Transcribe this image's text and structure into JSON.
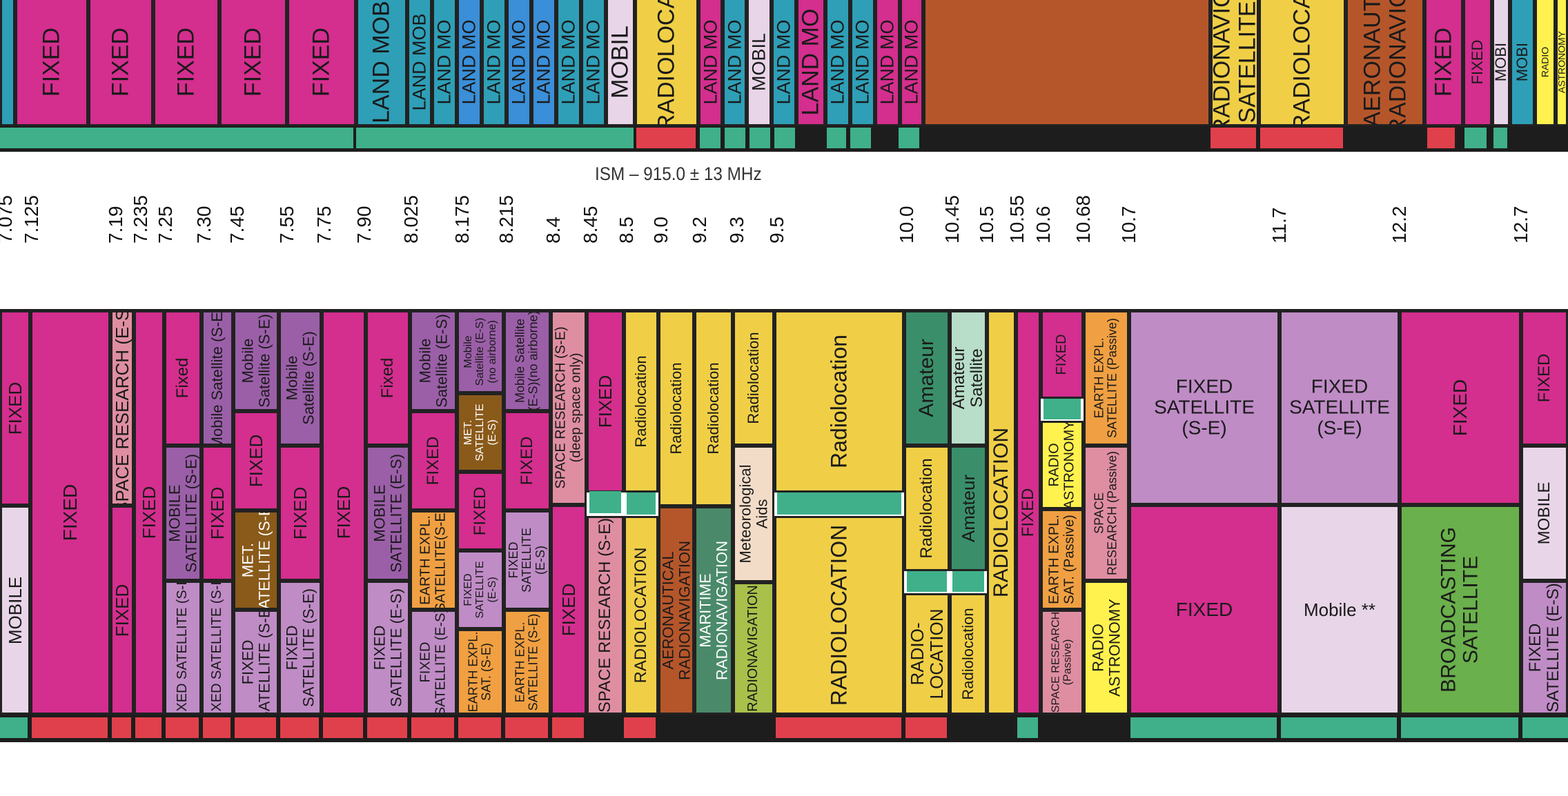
{
  "ism_label": "ISM – 915.0 ± 13 MHz",
  "colors": {
    "fixed": "#d42e8e",
    "mobile": "#e8d6e8",
    "land_mobile": "#2e9fb7",
    "land_mobile_blue": "#3a8fd8",
    "radiolocation": "#f0cf47",
    "radionav": "#b5562a",
    "space_research": "#df8ea2",
    "mobile_sat": "#9b5fa8",
    "fixed_sat": "#bf8cc6",
    "met_sat": "#8a5a1a",
    "earth_expl": "#f0a042",
    "amateur": "#3a8f6a",
    "amateur_sat": "#b8ddc8",
    "radio_astronomy": "#fff24e",
    "broadcasting_sat": "#6ab04c",
    "maritime_radionav": "#4a8a6a",
    "radionavigation": "#a9c04a",
    "met_aids": "#f2dcc8",
    "strip_green": "#3fb08a",
    "strip_red": "#e0404c",
    "strip_black": "#1d1d1d"
  },
  "top_band": [
    {
      "label": "FIXED",
      "color": "fixed"
    },
    {
      "label": "FIXED",
      "color": "fixed"
    },
    {
      "label": "FIXED",
      "color": "fixed"
    },
    {
      "label": "FIXED",
      "color": "fixed"
    },
    {
      "label": "FIXED",
      "color": "fixed"
    },
    {
      "label": "LAND MOB",
      "color": "land_mobile"
    },
    {
      "label": "LAND MOB",
      "color": "land_mobile"
    },
    {
      "label": "LAND MO",
      "color": "land_mobile"
    },
    {
      "label": "LAND MO",
      "color": "land_mobile"
    },
    {
      "label": "LAND MO",
      "color": "land_mobile"
    },
    {
      "label": "MOBIL",
      "color": "mobile"
    },
    {
      "label": "RADIOLOCA",
      "color": "radiolocation"
    },
    {
      "label": "LAND MO",
      "color": "land_mobile"
    },
    {
      "label": "MOBIL",
      "color": "mobile"
    },
    {
      "label": "LAND MO",
      "color": "land_mobile"
    },
    {
      "label": "LAND MO",
      "color": "land_mobile"
    },
    {
      "label": "LAND MO",
      "color": "land_mobile"
    },
    {
      "label": "RADIONAVIG\nSATELLITE",
      "color": "radiolocation"
    },
    {
      "label": "RADIOLOCA",
      "color": "radiolocation"
    },
    {
      "label": "AERONAUT\nRADIONAVIG",
      "color": "radionav"
    },
    {
      "label": "FIXED",
      "color": "fixed"
    },
    {
      "label": "FIXED",
      "color": "fixed"
    },
    {
      "label": "MOBI",
      "color": "mobile"
    },
    {
      "label": "RADIO",
      "color": "radio_astronomy"
    },
    {
      "label": "ASTRONOMY",
      "color": "radio_astronomy"
    }
  ],
  "ticks": [
    "7.075",
    "7.125",
    "7.19",
    "7.235",
    "7.25",
    "7.30",
    "7.45",
    "7.55",
    "7.75",
    "7.90",
    "8.025",
    "8.175",
    "8.215",
    "8.4",
    "8.45",
    "8.5",
    "9.0",
    "9.2",
    "9.3",
    "9.5",
    "10.0",
    "10.45",
    "10.5",
    "10.55",
    "10.6",
    "10.68",
    "10.7",
    "11.7",
    "12.2",
    "12.7"
  ],
  "cells": [
    {
      "label": "FIXED",
      "color": "fixed"
    },
    {
      "label": "MOBILE",
      "color": "mobile"
    },
    {
      "label": "FIXED",
      "color": "fixed"
    },
    {
      "label": "SPACE RESEARCH (E-S)",
      "color": "space_research"
    },
    {
      "label": "FIXED",
      "color": "fixed"
    },
    {
      "label": "FIXED",
      "color": "fixed"
    },
    {
      "label": "Fixed",
      "color": "fixed"
    },
    {
      "label": "MOBILE\nSATELLITE (S-E)",
      "color": "mobile_sat"
    },
    {
      "label": "FIXED SATELLITE (S-E)",
      "color": "fixed_sat"
    },
    {
      "label": "Mobile Satellite (S-E)",
      "color": "mobile_sat"
    },
    {
      "label": "FIXED",
      "color": "fixed"
    },
    {
      "label": "FIXED SATELLITE (S-E)",
      "color": "fixed_sat"
    },
    {
      "label": "Mobile\nSatellite (S-E)",
      "color": "mobile_sat"
    },
    {
      "label": "FIXED",
      "color": "fixed"
    },
    {
      "label": "MET.\nSATELLITE (S-E)",
      "color": "met_sat"
    },
    {
      "label": "FIXED\nSATELLITE (S-E)",
      "color": "fixed_sat"
    },
    {
      "label": "Mobile\nSatellite (S-E)",
      "color": "mobile_sat"
    },
    {
      "label": "FIXED",
      "color": "fixed"
    },
    {
      "label": "FIXED\nSATELLITE (S-E)",
      "color": "fixed_sat"
    },
    {
      "label": "FIXED",
      "color": "fixed"
    },
    {
      "label": "Fixed",
      "color": "fixed"
    },
    {
      "label": "MOBILE\nSATELLITE (E-S)",
      "color": "mobile_sat"
    },
    {
      "label": "FIXED\nSATELLITE (E-S)",
      "color": "fixed_sat"
    },
    {
      "label": "Mobile\nSatellite (E-S)",
      "color": "mobile_sat"
    },
    {
      "label": "FIXED",
      "color": "fixed"
    },
    {
      "label": "EARTH EXPL.\nSATELLITE(S-E)",
      "color": "earth_expl"
    },
    {
      "label": "FIXED\nSATELLITE (E-S)",
      "color": "fixed_sat"
    },
    {
      "label": "Mobile\nSatellite (E-S)\n(no airborne)",
      "color": "mobile_sat"
    },
    {
      "label": "MET.\nSATELLITE\n(E-S)",
      "color": "met_sat"
    },
    {
      "label": "FIXED",
      "color": "fixed"
    },
    {
      "label": "FIXED\nSATELLITE\n(E-S)",
      "color": "fixed_sat"
    },
    {
      "label": "EARTH EXPL.\nSAT. (S-E)",
      "color": "earth_expl"
    },
    {
      "label": "Mobile Satellite\n(E-S)(no airborne)",
      "color": "mobile_sat"
    },
    {
      "label": "FIXED",
      "color": "fixed"
    },
    {
      "label": "FIXED\nSATELLITE\n(E-S)",
      "color": "fixed_sat"
    },
    {
      "label": "EARTH EXPL.\nSATELLITE (S-E)",
      "color": "earth_expl"
    },
    {
      "label": "SPACE RESEARCH (S-E)\n(deep space only)",
      "color": "space_research"
    },
    {
      "label": "FIXED",
      "color": "fixed"
    },
    {
      "label": "FIXED",
      "color": "fixed"
    },
    {
      "label": "SPACE RESEARCH (S-E)",
      "color": "space_research"
    },
    {
      "label": "Radiolocation",
      "color": "radiolocation"
    },
    {
      "label": "RADIOLOCATION",
      "color": "radiolocation"
    },
    {
      "label": "Radiolocation",
      "color": "radiolocation"
    },
    {
      "label": "AERONAUTICAL\nRADIONAVIGATION",
      "color": "radionav"
    },
    {
      "label": "Radiolocation",
      "color": "radiolocation"
    },
    {
      "label": "MARITIME\nRADIONAVIGATION",
      "color": "maritime_radionav"
    },
    {
      "label": "Radiolocation",
      "color": "radiolocation"
    },
    {
      "label": "Meteorological\nAids",
      "color": "met_aids"
    },
    {
      "label": "RADIONAVIGATION",
      "color": "radionavigation"
    },
    {
      "label": "Radiolocation",
      "color": "radiolocation"
    },
    {
      "label": "RADIOLOCATION",
      "color": "radiolocation"
    },
    {
      "label": "Amateur",
      "color": "amateur"
    },
    {
      "label": "Radiolocation",
      "color": "radiolocation"
    },
    {
      "label": "RADIO-\nLOCATION",
      "color": "radiolocation"
    },
    {
      "label": "Amateur\nSatellite",
      "color": "amateur_sat"
    },
    {
      "label": "Amateur",
      "color": "amateur"
    },
    {
      "label": "Radiolocation",
      "color": "radiolocation"
    },
    {
      "label": "RADIOLOCATION",
      "color": "radiolocation"
    },
    {
      "label": "FIXED",
      "color": "fixed"
    },
    {
      "label": "FIXED",
      "color": "fixed"
    },
    {
      "label": "RADIO\nASTRONOMY",
      "color": "radio_astronomy"
    },
    {
      "label": "EARTH EXPL.\nSAT. (Passive)",
      "color": "earth_expl"
    },
    {
      "label": "SPACE RESEARCH\n(Passive)",
      "color": "space_research"
    },
    {
      "label": "EARTH EXPL.\nSATELLITE (Passive)",
      "color": "earth_expl"
    },
    {
      "label": "SPACE\nRESEARCH (Passive)",
      "color": "space_research"
    },
    {
      "label": "RADIO\nASTRONOMY",
      "color": "radio_astronomy"
    },
    {
      "label": "FIXED\nSATELLITE\n(S-E)",
      "color": "fixed_sat"
    },
    {
      "label": "FIXED",
      "color": "fixed"
    },
    {
      "label": "FIXED\nSATELLITE\n(S-E)",
      "color": "fixed_sat"
    },
    {
      "label": "Mobile **",
      "color": "mobile"
    },
    {
      "label": "FIXED",
      "color": "fixed"
    },
    {
      "label": "BROADCASTING\nSATELLITE",
      "color": "broadcasting_sat"
    },
    {
      "label": "FIXED",
      "color": "fixed"
    },
    {
      "label": "MOBILE",
      "color": "mobile"
    },
    {
      "label": "FIXED\nSATELLITE (E-S)",
      "color": "fixed_sat"
    }
  ]
}
